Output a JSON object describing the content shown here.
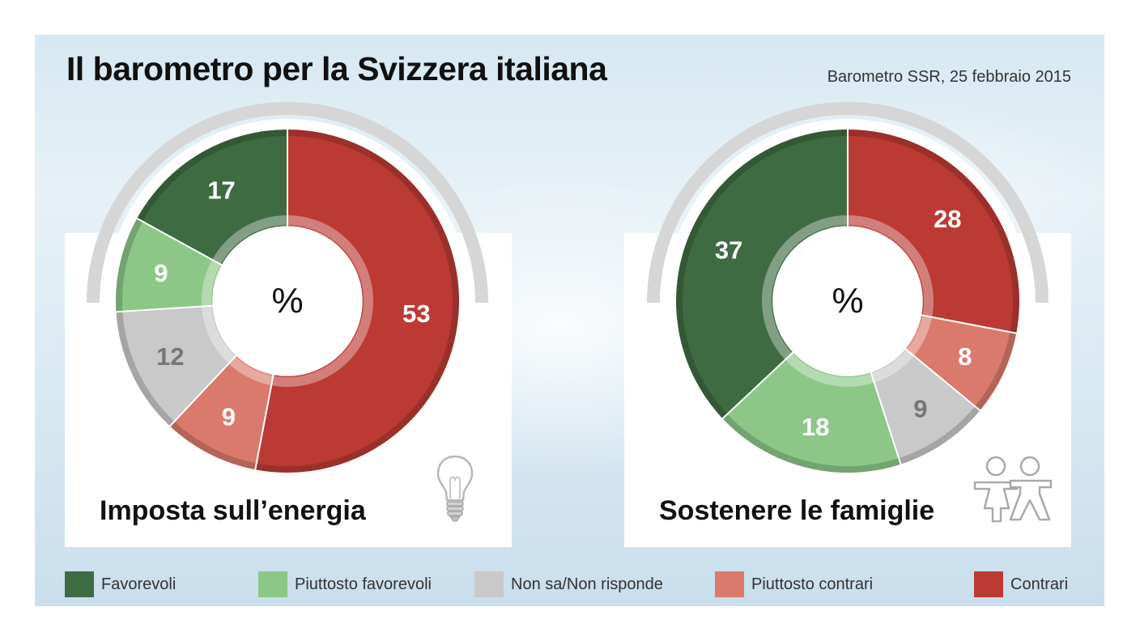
{
  "header": {
    "title": "Il barometro per la Svizzera italiana",
    "source": "Barometro SSR, 25 febbraio 2015"
  },
  "colors": {
    "favorevoli": "#3f6b42",
    "piuttosto_favorevoli": "#8cc788",
    "non_sa": "#c9c9c9",
    "piuttosto_contrari": "#d97a6c",
    "contrari": "#bc3a34"
  },
  "legend": [
    {
      "label": "Favorevoli",
      "color": "#3f6b42"
    },
    {
      "label": "Piuttosto favorevoli",
      "color": "#8cc788"
    },
    {
      "label": "Non sa/Non risponde",
      "color": "#c9c9c9"
    },
    {
      "label": "Piuttosto contrari",
      "color": "#d97a6c"
    },
    {
      "label": "Contrari",
      "color": "#bc3a34"
    }
  ],
  "chart_data": [
    {
      "type": "pie",
      "title": "Imposta sull’energia",
      "center_label": "%",
      "icon": "lightbulb-icon",
      "categories": [
        "Contrari",
        "Piuttosto contrari",
        "Non sa/Non risponde",
        "Piuttosto favorevoli",
        "Favorevoli"
      ],
      "values": [
        53,
        9,
        12,
        9,
        17
      ],
      "colors": [
        "#bc3a34",
        "#d97a6c",
        "#c9c9c9",
        "#8cc788",
        "#3f6b42"
      ]
    },
    {
      "type": "pie",
      "title": "Sostenere le famiglie",
      "center_label": "%",
      "icon": "family-icon",
      "categories": [
        "Contrari",
        "Piuttosto contrari",
        "Non sa/Non risponde",
        "Piuttosto favorevoli",
        "Favorevoli"
      ],
      "values": [
        28,
        8,
        9,
        18,
        37
      ],
      "colors": [
        "#bc3a34",
        "#d97a6c",
        "#c9c9c9",
        "#8cc788",
        "#3f6b42"
      ]
    }
  ]
}
